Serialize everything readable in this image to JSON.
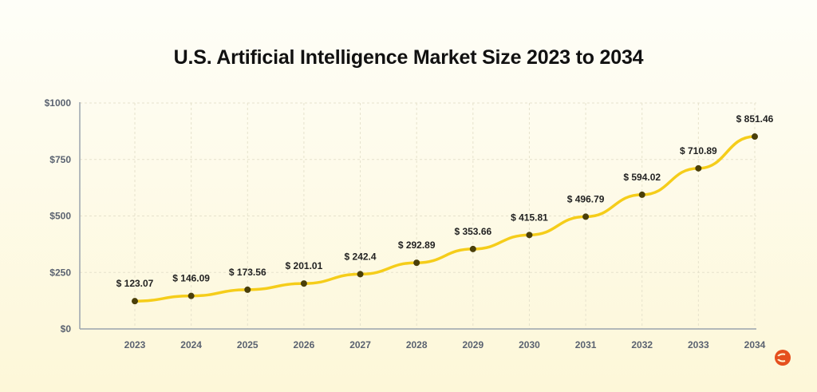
{
  "chart_data": {
    "type": "line",
    "title": "U.S. Artificial Intelligence Market Size 2023 to 2034",
    "xlabel": "",
    "ylabel": "",
    "categories": [
      "2023",
      "2024",
      "2025",
      "2026",
      "2027",
      "2028",
      "2029",
      "2030",
      "2031",
      "2032",
      "2033",
      "2034"
    ],
    "values": [
      123.07,
      146.09,
      173.56,
      201.01,
      242.4,
      292.89,
      353.66,
      415.81,
      496.79,
      594.02,
      710.89,
      851.46
    ],
    "data_labels": [
      "$ 123.07",
      "$ 146.09",
      "$ 173.56",
      "$ 201.01",
      "$ 242.4",
      "$ 292.89",
      "$ 353.66",
      "$ 415.81",
      "$ 496.79",
      "$ 594.02",
      "$ 710.89",
      "$ 851.46"
    ],
    "ylim": [
      0,
      1000
    ],
    "yticks": [
      0,
      250,
      500,
      750,
      1000
    ],
    "ytick_labels": [
      "$0",
      "$250",
      "$500",
      "$750",
      "$1000"
    ],
    "grid": true,
    "line_color": "#f5cd1a",
    "marker_color": "#4a3f0a"
  },
  "logo_color": "#e5501e"
}
